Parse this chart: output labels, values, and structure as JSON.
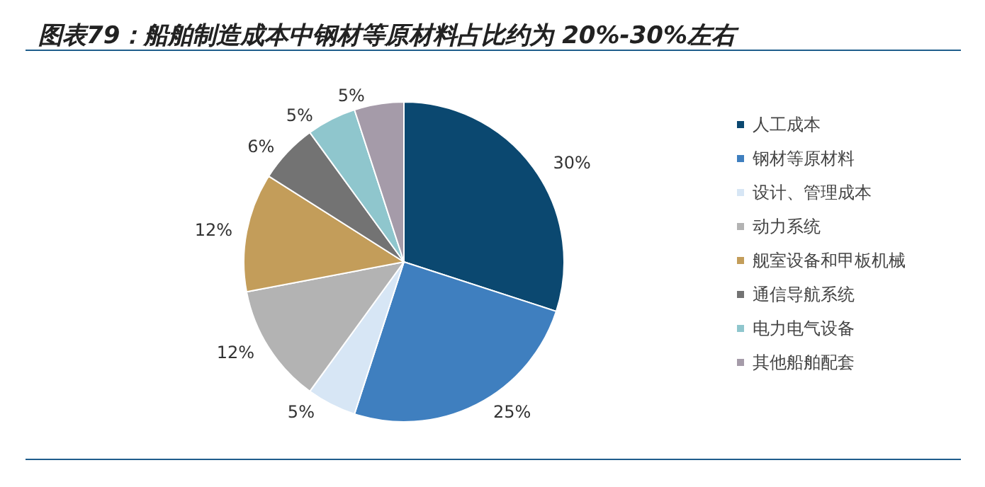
{
  "chart_data": {
    "type": "pie",
    "title": "图表79：船舶制造成本中钢材等原材料占比约为 20%-30%左右",
    "categories": [
      "人工成本",
      "钢材等原材料",
      "设计、管理成本",
      "动力系统",
      "舰室设备和甲板机械",
      "通信导航系统",
      "电力电气设备",
      "其他船舶配套"
    ],
    "values": [
      30,
      25,
      5,
      12,
      12,
      6,
      5,
      5
    ],
    "value_labels": [
      "30%",
      "25%",
      "5%",
      "12%",
      "12%",
      "6%",
      "5%",
      "5%"
    ],
    "colors": [
      "#0b4870",
      "#3f7fbf",
      "#d7e6f5",
      "#b3b3b3",
      "#c39d5a",
      "#737373",
      "#8fc6cd",
      "#a59ba9"
    ],
    "legend": "right"
  }
}
